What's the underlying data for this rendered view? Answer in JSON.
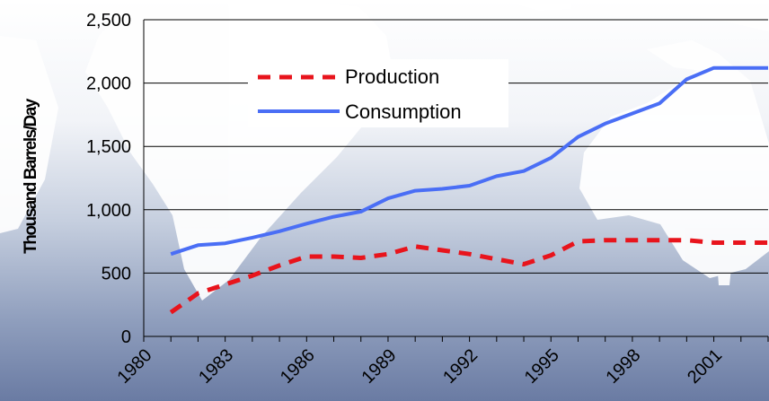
{
  "chart_data": {
    "type": "line",
    "title": "",
    "xlabel": "",
    "ylabel": "Thousand Barrels/Day",
    "x": [
      1981,
      1982,
      1983,
      1984,
      1985,
      1986,
      1987,
      1988,
      1989,
      1990,
      1991,
      1992,
      1993,
      1994,
      1995,
      1996,
      1997,
      1998,
      1999,
      2000,
      2001,
      2002,
      2003
    ],
    "xlim": [
      1980,
      2003
    ],
    "x_ticks": [
      "1980",
      "1983",
      "1986",
      "1989",
      "1992",
      "1995",
      "1998",
      "2001"
    ],
    "ylim": [
      0,
      2500
    ],
    "y_ticks": [
      "0",
      "500",
      "1,000",
      "1,500",
      "2,000",
      "2,500"
    ],
    "grid": "horizontal",
    "legend": "top-center",
    "series": [
      {
        "name": "Production",
        "color": "#e8141c",
        "style": "dashed",
        "values": [
          190,
          340,
          410,
          480,
          560,
          630,
          630,
          620,
          650,
          710,
          680,
          650,
          610,
          570,
          640,
          750,
          760,
          760,
          760,
          760,
          740,
          740,
          740
        ]
      },
      {
        "name": "Consumption",
        "color": "#4a6ef5",
        "style": "solid",
        "values": [
          650,
          720,
          735,
          780,
          830,
          890,
          945,
          985,
          1090,
          1150,
          1165,
          1190,
          1265,
          1305,
          1410,
          1575,
          1680,
          1760,
          1840,
          2030,
          2120,
          2120,
          2120
        ]
      }
    ]
  }
}
